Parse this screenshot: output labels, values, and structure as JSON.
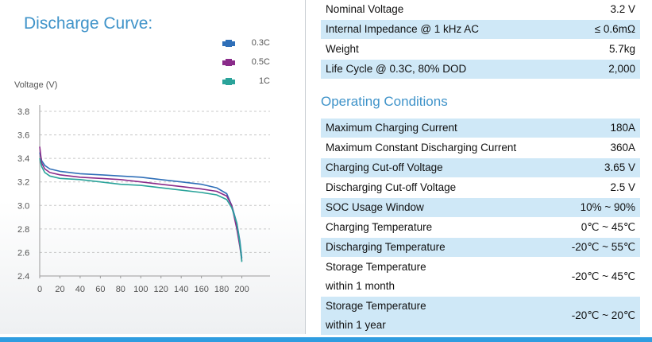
{
  "chart_title": "Discharge Curve:",
  "chart_data": {
    "type": "line",
    "ylabel": "Voltage (V)",
    "xlabel": "",
    "xlim": [
      0,
      220
    ],
    "ylim": [
      2.4,
      3.8
    ],
    "xticks": [
      "0",
      "20",
      "40",
      "60",
      "80",
      "100",
      "120",
      "140",
      "160",
      "180",
      "200"
    ],
    "yticks": [
      "3.8",
      "3.6",
      "3.4",
      "3.2",
      "3.0",
      "2.8",
      "2.6",
      "2.4"
    ],
    "grid": "horizontal dashed",
    "legend_position": "top-right",
    "series": [
      {
        "name": "0.3C",
        "color": "#2f6fb8",
        "x": [
          0,
          2,
          5,
          10,
          20,
          40,
          60,
          80,
          100,
          120,
          140,
          160,
          175,
          185,
          190,
          195,
          198,
          200
        ],
        "y": [
          3.45,
          3.38,
          3.34,
          3.31,
          3.29,
          3.27,
          3.26,
          3.25,
          3.24,
          3.22,
          3.2,
          3.18,
          3.15,
          3.1,
          3.0,
          2.85,
          2.7,
          2.55
        ]
      },
      {
        "name": "0.5C",
        "color": "#8a2b8a",
        "x": [
          0,
          2,
          5,
          10,
          20,
          40,
          60,
          80,
          100,
          120,
          140,
          160,
          175,
          185,
          190,
          195,
          198,
          200
        ],
        "y": [
          3.5,
          3.36,
          3.31,
          3.28,
          3.26,
          3.24,
          3.23,
          3.22,
          3.2,
          3.18,
          3.16,
          3.14,
          3.12,
          3.08,
          3.0,
          2.8,
          2.65,
          2.53
        ]
      },
      {
        "name": "1C",
        "color": "#2aa39a",
        "x": [
          0,
          2,
          5,
          10,
          20,
          40,
          60,
          80,
          100,
          120,
          140,
          160,
          175,
          185,
          190,
          195,
          198,
          200
        ],
        "y": [
          3.4,
          3.33,
          3.28,
          3.25,
          3.23,
          3.22,
          3.2,
          3.18,
          3.17,
          3.15,
          3.13,
          3.11,
          3.09,
          3.05,
          2.98,
          2.85,
          2.68,
          2.52
        ]
      }
    ]
  },
  "specs_top": [
    {
      "label": "Nominal Voltage",
      "value": "3.2 V",
      "shaded": false
    },
    {
      "label": "Internal Impedance @ 1 kHz AC",
      "value": "≤ 0.6mΩ",
      "shaded": true
    },
    {
      "label": "Weight",
      "value": "5.7kg",
      "shaded": false
    },
    {
      "label": "Life Cycle @ 0.3C, 80% DOD",
      "value": "2,000",
      "shaded": true
    }
  ],
  "section_title": "Operating Conditions",
  "specs_operating": [
    {
      "label": "Maximum Charging Current",
      "value": "180A",
      "shaded": true
    },
    {
      "label": "Maximum Constant Discharging Current",
      "value": "360A",
      "shaded": false
    },
    {
      "label": "Charging Cut-off Voltage",
      "value": "3.65 V",
      "shaded": true
    },
    {
      "label": "Discharging Cut-off Voltage",
      "value": "2.5 V",
      "shaded": false
    },
    {
      "label": "SOC Usage Window",
      "value": "10% ~ 90%",
      "shaded": true
    },
    {
      "label": "Charging Temperature",
      "value": "0℃ ~ 45℃",
      "shaded": false
    },
    {
      "label": "Discharging Temperature",
      "value": "-20℃ ~ 55℃",
      "shaded": true
    }
  ],
  "specs_storage": [
    {
      "label1": "Storage Temperature",
      "label2": "within 1 month",
      "value": "-20℃ ~ 45℃",
      "shaded": false
    },
    {
      "label1": "Storage Temperature",
      "label2": "within 1 year",
      "value": "-20℃ ~ 20℃",
      "shaded": true
    }
  ]
}
